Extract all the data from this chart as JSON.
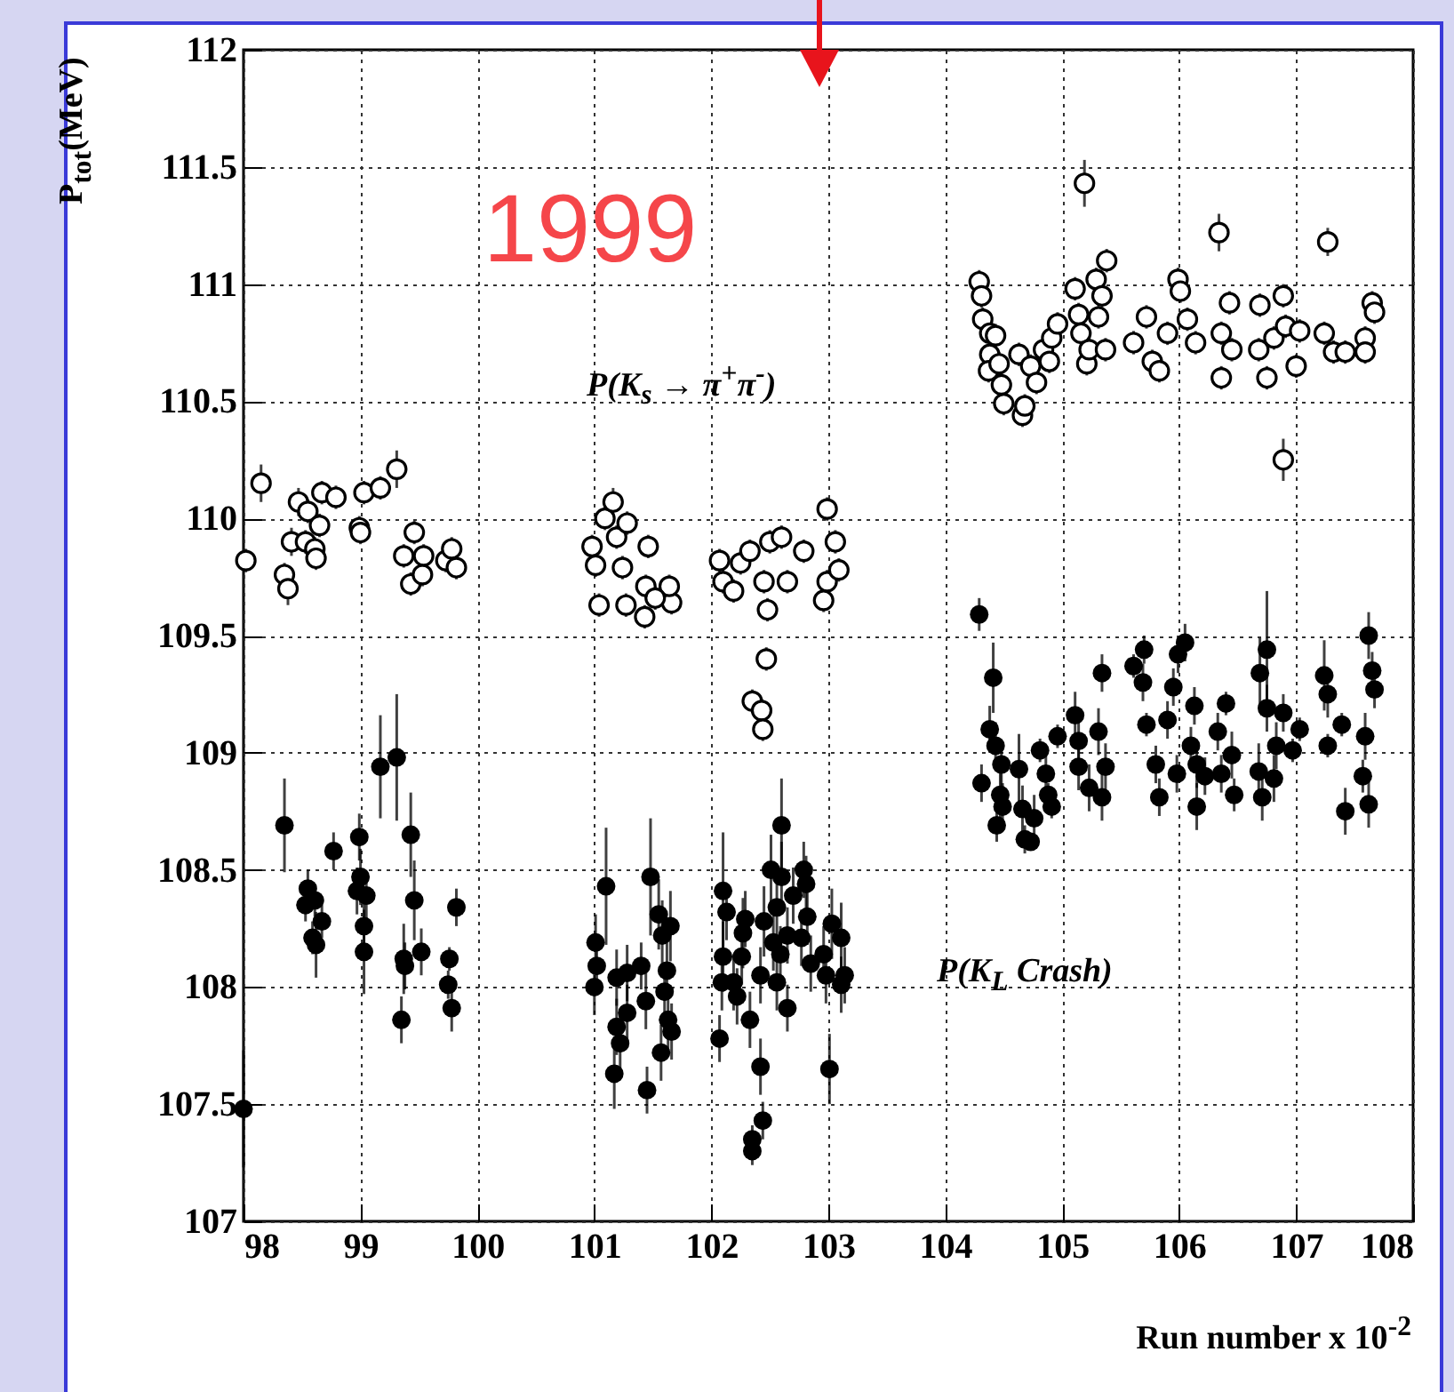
{
  "chart_data": {
    "type": "scatter",
    "xlabel": "Run number x 10$^{-2}$",
    "ylabel": "P$_{tot}$(MeV)",
    "annotations": [
      "1999"
    ],
    "xlim": [
      98,
      108
    ],
    "xticks": [
      98,
      99,
      100,
      101,
      102,
      103,
      104,
      105,
      106,
      107,
      108
    ],
    "ylim": [
      107,
      112
    ],
    "yticks": [
      107,
      107.5,
      108,
      108.5,
      109,
      109.5,
      110,
      110.5,
      111,
      111.5,
      112
    ],
    "grid": true,
    "marker": "circle",
    "legend": false,
    "series": [
      {
        "name": "P(K$_{s}$ → π$^{+}$π$^{-}$)",
        "color": "#000000",
        "x": [
          98.02,
          98.15,
          98.35,
          98.38,
          98.41,
          98.47,
          98.53,
          98.55,
          98.61,
          98.62,
          98.65,
          98.67,
          98.79,
          98.99,
          99.0,
          99.03,
          99.17,
          99.31,
          99.37,
          99.46,
          99.43,
          99.53,
          99.54,
          99.73,
          99.78,
          99.82,
          100.98,
          101.01,
          101.04,
          101.09,
          101.16,
          101.19,
          101.24,
          101.27,
          101.28,
          101.46,
          101.44,
          101.43,
          101.66,
          101.64,
          101.52,
          102.07,
          102.1,
          102.19,
          102.25,
          102.33,
          102.35,
          102.43,
          102.44,
          102.47,
          102.45,
          102.48,
          102.5,
          102.6,
          102.65,
          102.79,
          102.96,
          102.99,
          102.99,
          103.06,
          103.09,
          104.29,
          104.31,
          104.32,
          104.38,
          104.43,
          104.38,
          104.37,
          104.46,
          104.5,
          104.48,
          104.66,
          104.68,
          104.63,
          104.73,
          104.78,
          104.84,
          104.89,
          104.91,
          104.96,
          105.11,
          105.19,
          105.14,
          105.21,
          105.16,
          105.23,
          105.29,
          105.34,
          105.38,
          105.31,
          105.37,
          105.61,
          105.72,
          105.77,
          105.83,
          105.9,
          105.99,
          106.01,
          106.07,
          106.14,
          106.34,
          106.36,
          106.36,
          106.43,
          106.45,
          106.69,
          106.68,
          106.75,
          106.81,
          106.89,
          106.89,
          106.91,
          107.0,
          107.03,
          107.27,
          107.24,
          107.32,
          107.42,
          107.59,
          107.59,
          107.65,
          107.67
        ],
        "values": [
          109.82,
          110.15,
          109.76,
          109.7,
          109.9,
          110.07,
          109.9,
          110.03,
          109.87,
          109.83,
          109.97,
          110.11,
          110.09,
          109.96,
          109.94,
          110.11,
          110.13,
          110.21,
          109.84,
          109.94,
          109.72,
          109.76,
          109.84,
          109.82,
          109.87,
          109.79,
          109.88,
          109.8,
          109.63,
          110.0,
          110.07,
          109.92,
          109.79,
          109.63,
          109.98,
          109.88,
          109.71,
          109.58,
          109.64,
          109.71,
          109.66,
          109.82,
          109.73,
          109.69,
          109.81,
          109.86,
          109.22,
          109.18,
          109.1,
          109.4,
          109.73,
          109.61,
          109.9,
          109.92,
          109.73,
          109.86,
          109.65,
          110.04,
          109.73,
          109.9,
          109.78,
          111.01,
          110.95,
          110.85,
          110.79,
          110.78,
          110.7,
          110.63,
          110.66,
          110.49,
          110.57,
          110.44,
          110.48,
          110.7,
          110.65,
          110.58,
          110.72,
          110.67,
          110.77,
          110.83,
          110.98,
          111.43,
          110.87,
          110.66,
          110.79,
          110.72,
          111.02,
          110.95,
          111.1,
          110.86,
          110.72,
          110.75,
          110.86,
          110.67,
          110.63,
          110.79,
          111.02,
          110.97,
          110.85,
          110.75,
          111.22,
          110.6,
          110.79,
          110.92,
          110.72,
          110.91,
          110.72,
          110.6,
          110.77,
          110.95,
          110.25,
          110.82,
          110.65,
          110.8,
          111.18,
          110.79,
          110.71,
          110.71,
          110.77,
          110.71,
          110.92,
          110.88
        ],
        "errors": [
          0.05,
          0.08,
          0.05,
          0.07,
          0.06,
          0.06,
          0.05,
          0.05,
          0.05,
          0.05,
          0.05,
          0.05,
          0.05,
          0.05,
          0.05,
          0.05,
          0.05,
          0.08,
          0.05,
          0.05,
          0.05,
          0.05,
          0.05,
          0.05,
          0.05,
          0.05,
          0.05,
          0.05,
          0.05,
          0.05,
          0.06,
          0.05,
          0.05,
          0.05,
          0.05,
          0.05,
          0.05,
          0.05,
          0.05,
          0.05,
          0.05,
          0.05,
          0.05,
          0.05,
          0.05,
          0.05,
          0.05,
          0.05,
          0.05,
          0.05,
          0.05,
          0.05,
          0.05,
          0.05,
          0.05,
          0.05,
          0.05,
          0.05,
          0.05,
          0.05,
          0.05,
          0.05,
          0.05,
          0.05,
          null,
          0.05,
          0.05,
          0.05,
          0.05,
          0.05,
          0.05,
          0.05,
          0.05,
          0.05,
          0.05,
          0.05,
          0.05,
          0.05,
          0.05,
          0.05,
          0.05,
          0.1,
          0.05,
          0.05,
          0.05,
          0.05,
          0.05,
          0.05,
          0.05,
          0.05,
          0.05,
          0.05,
          0.05,
          0.05,
          0.05,
          0.05,
          0.05,
          0.05,
          0.05,
          0.05,
          0.08,
          0.05,
          0.05,
          0.05,
          0.05,
          0.05,
          0.05,
          0.05,
          0.05,
          0.05,
          0.09,
          0.05,
          0.05,
          0.05,
          0.06,
          0.05,
          0.05,
          0.05,
          0.05,
          0.05,
          0.05,
          0.05
        ]
      },
      {
        "name": "P(K$_{L}$ Crash)",
        "color": "#000000",
        "x": [
          98.0,
          98.35,
          98.55,
          98.53,
          98.61,
          98.67,
          98.59,
          98.62,
          98.77,
          98.99,
          99.0,
          98.97,
          99.05,
          99.03,
          99.03,
          99.17,
          99.31,
          99.43,
          99.46,
          99.37,
          99.38,
          99.35,
          99.52,
          99.76,
          99.75,
          99.78,
          99.82,
          101.01,
          101.02,
          101.0,
          101.1,
          101.19,
          101.19,
          101.22,
          101.17,
          101.28,
          101.28,
          101.4,
          101.44,
          101.48,
          101.45,
          101.55,
          101.58,
          101.65,
          101.62,
          101.6,
          101.63,
          101.66,
          101.57,
          102.07,
          102.1,
          102.1,
          102.13,
          102.09,
          102.19,
          102.27,
          102.22,
          102.29,
          102.26,
          102.33,
          102.42,
          102.35,
          102.35,
          102.44,
          102.45,
          102.42,
          102.51,
          102.6,
          102.6,
          102.56,
          102.53,
          102.59,
          102.56,
          102.65,
          102.7,
          102.65,
          102.79,
          102.81,
          102.82,
          102.77,
          102.85,
          102.96,
          103.03,
          102.98,
          103.01,
          103.11,
          103.14,
          103.11,
          104.29,
          104.31,
          104.41,
          104.38,
          104.43,
          104.48,
          104.47,
          104.49,
          104.44,
          104.63,
          104.66,
          104.68,
          104.73,
          104.76,
          104.81,
          104.86,
          104.88,
          104.96,
          104.91,
          105.11,
          105.14,
          105.14,
          105.23,
          105.34,
          105.31,
          105.37,
          105.34,
          105.61,
          105.7,
          105.69,
          105.72,
          105.8,
          105.83,
          105.9,
          105.95,
          105.99,
          106.05,
          105.98,
          106.13,
          106.1,
          106.15,
          106.15,
          106.22,
          106.33,
          106.36,
          106.4,
          106.45,
          106.47,
          106.69,
          106.75,
          106.68,
          106.71,
          106.75,
          106.83,
          106.81,
          106.89,
          106.97,
          107.03,
          107.24,
          107.27,
          107.27,
          107.39,
          107.42,
          107.57,
          107.59,
          107.62,
          107.62,
          107.65,
          107.67
        ],
        "values": [
          107.48,
          108.69,
          108.42,
          108.35,
          108.37,
          108.28,
          108.21,
          108.18,
          108.58,
          108.64,
          108.47,
          108.41,
          108.39,
          108.26,
          108.15,
          108.94,
          108.98,
          108.65,
          108.37,
          108.12,
          108.09,
          107.86,
          108.15,
          108.12,
          108.01,
          107.91,
          108.34,
          108.19,
          108.09,
          108.0,
          108.43,
          108.04,
          107.83,
          107.76,
          107.63,
          107.89,
          108.06,
          108.09,
          107.94,
          108.47,
          107.56,
          108.31,
          108.22,
          108.26,
          108.07,
          107.98,
          107.86,
          107.81,
          107.72,
          107.78,
          108.41,
          108.13,
          108.32,
          108.02,
          108.02,
          108.23,
          107.96,
          108.29,
          108.13,
          107.86,
          107.66,
          107.35,
          107.3,
          107.43,
          108.28,
          108.05,
          108.5,
          108.69,
          108.47,
          108.34,
          108.19,
          108.14,
          108.02,
          107.91,
          108.39,
          108.22,
          108.5,
          108.44,
          108.3,
          108.21,
          108.1,
          108.14,
          108.27,
          108.05,
          107.65,
          108.21,
          108.05,
          108.01,
          109.59,
          108.87,
          109.32,
          109.1,
          109.03,
          108.95,
          108.82,
          108.77,
          108.69,
          108.93,
          108.76,
          108.63,
          108.62,
          108.72,
          109.01,
          108.91,
          108.82,
          109.07,
          108.77,
          109.16,
          109.05,
          108.94,
          108.85,
          109.34,
          109.09,
          108.94,
          108.81,
          109.37,
          109.44,
          109.3,
          109.12,
          108.95,
          108.81,
          109.14,
          109.28,
          109.42,
          109.47,
          108.91,
          109.2,
          109.03,
          108.95,
          108.77,
          108.9,
          109.09,
          108.91,
          109.21,
          108.99,
          108.82,
          109.34,
          109.44,
          108.92,
          108.81,
          109.19,
          109.03,
          108.89,
          109.17,
          109.01,
          109.1,
          109.33,
          109.25,
          109.03,
          109.12,
          108.75,
          108.9,
          109.07,
          108.78,
          109.5,
          109.35,
          109.27
        ],
        "errors": [
          0.25,
          0.2,
          0.08,
          0.07,
          0.07,
          0.07,
          0.07,
          0.14,
          0.08,
          0.1,
          0.12,
          0.1,
          0.1,
          0.1,
          0.18,
          0.22,
          0.27,
          0.18,
          0.17,
          0.15,
          0.1,
          0.1,
          0.1,
          0.05,
          0.06,
          0.1,
          0.08,
          0.12,
          0.12,
          0.12,
          0.25,
          0.12,
          0.12,
          0.12,
          0.15,
          0.12,
          0.12,
          0.1,
          0.12,
          0.25,
          0.1,
          0.15,
          0.15,
          0.15,
          0.12,
          0.12,
          0.12,
          0.12,
          0.12,
          0.1,
          0.25,
          0.15,
          0.12,
          0.12,
          0.12,
          0.15,
          0.12,
          0.12,
          0.12,
          0.12,
          0.12,
          0.06,
          0.06,
          0.08,
          0.15,
          0.12,
          0.15,
          0.2,
          0.15,
          0.12,
          0.12,
          0.12,
          0.12,
          0.1,
          0.12,
          0.12,
          0.12,
          0.12,
          0.12,
          0.12,
          0.12,
          0.12,
          0.15,
          0.12,
          0.15,
          0.15,
          0.12,
          0.12,
          0.07,
          0.08,
          0.15,
          0.1,
          0.1,
          0.1,
          0.1,
          0.1,
          0.07,
          0.15,
          0.1,
          0.06,
          null,
          0.1,
          0.05,
          0.1,
          0.05,
          0.05,
          0.05,
          0.1,
          0.1,
          0.1,
          0.1,
          0.08,
          0.1,
          0.1,
          0.1,
          0.05,
          0.06,
          0.08,
          0.05,
          0.08,
          0.08,
          0.08,
          0.08,
          0.08,
          0.08,
          0.08,
          0.08,
          0.08,
          0.1,
          0.1,
          0.08,
          0.08,
          0.08,
          0.05,
          0.1,
          0.07,
          0.15,
          0.25,
          0.12,
          0.1,
          0.1,
          0.1,
          0.1,
          0.08,
          0.05,
          0.05,
          0.15,
          0.1,
          0.05,
          0.05,
          0.1,
          0.07,
          0.1,
          0.1,
          0.1,
          0.08,
          0.08
        ]
      }
    ]
  }
}
